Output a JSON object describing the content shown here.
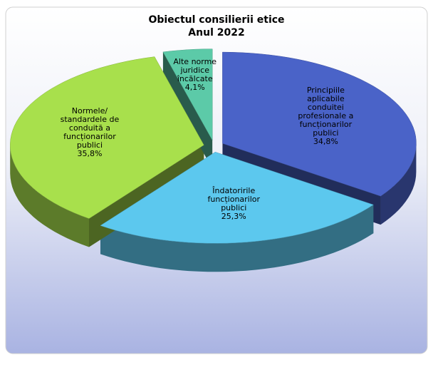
{
  "chart_data": {
    "type": "pie",
    "title": "Obiectul consilierii etice",
    "subtitle": "Anul 2022",
    "categories": [
      "Principiile aplicabile conduitei profesionale a funcționarilor publici",
      "Îndatoririle funcționarilor publici",
      "Normele/ standardele de conduită a funcționarilor publici",
      "Alte norme juridice încălcate"
    ],
    "values": [
      34.8,
      25.3,
      35.8,
      4.1
    ],
    "value_labels": [
      "34,8%",
      "25,3%",
      "35,8%",
      "4,1%"
    ],
    "colors": [
      "#4a63c8",
      "#5cc8ee",
      "#a8e04c",
      "#5ccaa8"
    ]
  }
}
